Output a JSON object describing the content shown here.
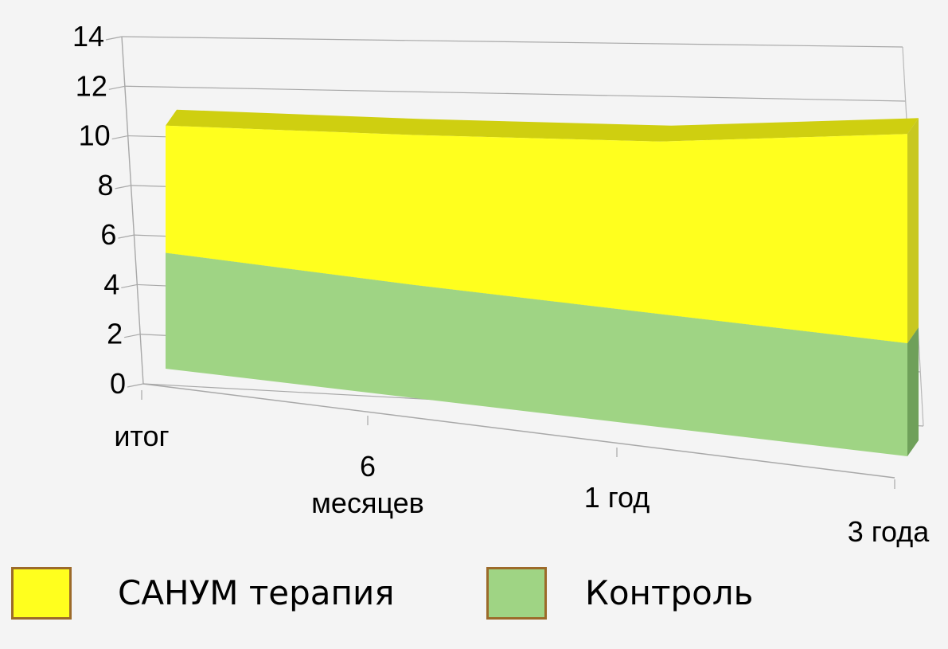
{
  "chart_data": {
    "type": "area",
    "categories": [
      "итог",
      "6\nмесяцев",
      "1 год",
      "3 года"
    ],
    "yticks": [
      "0",
      "2",
      "4",
      "6",
      "8",
      "10",
      "12",
      "14"
    ],
    "ylim": [
      0,
      14
    ],
    "stacked": true,
    "three_d": true,
    "grid": true,
    "legend_position": "bottom",
    "series": [
      {
        "name": "Контроль",
        "color": "#9fd484",
        "values": [
          4.1,
          4.0,
          4.0,
          4.0
        ]
      },
      {
        "name": "САНУМ терапия",
        "color": "#ffff1e",
        "values": [
          4.5,
          5.3,
          6.1,
          7.4
        ]
      }
    ]
  },
  "legend": [
    {
      "label": "САНУМ терапия",
      "color": "#ffff1e"
    },
    {
      "label": "Контроль",
      "color": "#9fd484"
    }
  ]
}
